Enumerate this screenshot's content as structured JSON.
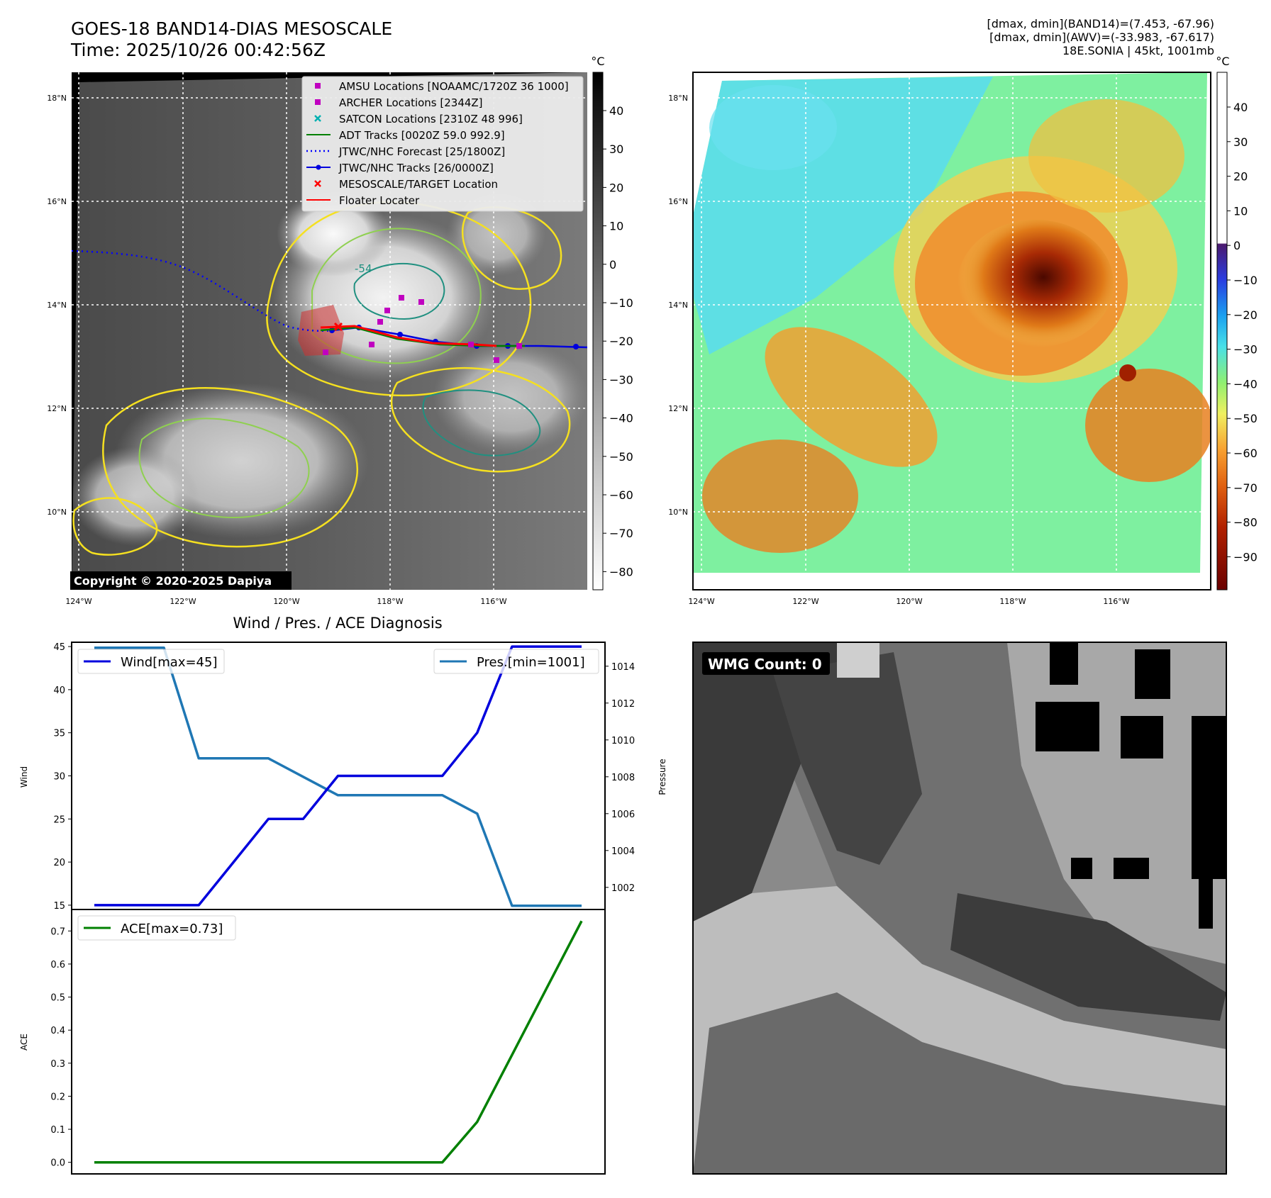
{
  "header": {
    "title": "GOES-18 BAND14-DIAS MESOSCALE",
    "time": "Time: 2025/10/26 00:42:56Z",
    "stats_band14": "[dmax, dmin](BAND14)=(7.453, -67.96)",
    "stats_awv": "[dmax, dmin](AWV)=(-33.983, -67.617)",
    "storm": "18E.SONIA | 45kt, 1001mb"
  },
  "colors": {
    "wind": "#0000dd",
    "pressure": "#1f77b4",
    "ace": "#008000",
    "amsu": "#c000c0",
    "satcon": "#00b0b0",
    "adt": "#008000",
    "forecast": "#0000ff",
    "target": "#ff0000"
  },
  "map_axes": {
    "lat_labels": [
      "18°N",
      "16°N",
      "14°N",
      "12°N",
      "10°N"
    ],
    "lon_labels": [
      "124°W",
      "122°W",
      "120°W",
      "118°W",
      "116°W"
    ]
  },
  "map_left": {
    "colorbar_unit": "°C",
    "colorbar_ticks": [
      "40",
      "30",
      "20",
      "10",
      "0",
      "−10",
      "−20",
      "−30",
      "−40",
      "−50",
      "−60",
      "−70",
      "−80"
    ],
    "copyright": "Copyright © 2020-2025 Dapiya",
    "contour_label": "-54",
    "legend": [
      {
        "label": "AMSU Locations [NOAAMC/1720Z 36 1000]",
        "icon": "magenta-square"
      },
      {
        "label": "ARCHER Locations [2344Z]",
        "icon": "magenta-square"
      },
      {
        "label": "SATCON Locations [2310Z 48 996]",
        "icon": "cyan-x"
      },
      {
        "label": "ADT Tracks [0020Z 59.0 992.9]",
        "icon": "green-line"
      },
      {
        "label": "JTWC/NHC Forecast [25/1800Z]",
        "icon": "blue-dotted-line"
      },
      {
        "label": "JTWC/NHC Tracks [26/0000Z]",
        "icon": "blue-line-dot"
      },
      {
        "label": "MESOSCALE/TARGET Location",
        "icon": "red-x"
      },
      {
        "label": "Floater Locater",
        "icon": "red-line"
      }
    ]
  },
  "map_right": {
    "colorbar_unit": "°C",
    "colorbar_ticks": [
      "40",
      "30",
      "20",
      "10",
      "0",
      "−10",
      "−20",
      "−30",
      "−40",
      "−50",
      "−60",
      "−70",
      "−80",
      "−90"
    ]
  },
  "wmg": {
    "label": "WMG Count: 0"
  },
  "chart_data": [
    {
      "type": "line",
      "title": "Wind / Pres. / ACE Diagnosis",
      "ylabel": "Wind",
      "ylabel_right": "Pressure",
      "x": [
        0,
        1,
        2,
        3,
        4,
        5,
        6,
        7,
        8,
        9,
        10,
        11,
        12,
        13,
        14
      ],
      "series": [
        {
          "name": "Wind[max=45]",
          "axis": "left",
          "values": [
            15,
            15,
            15,
            15,
            20,
            25,
            25,
            30,
            30,
            30,
            30,
            35,
            45,
            45,
            45
          ]
        },
        {
          "name": "Pres.[min=1001]",
          "axis": "right",
          "values": [
            1015,
            1015,
            1015,
            1009,
            1009,
            1009,
            1008,
            1007,
            1007,
            1007,
            1007,
            1006,
            1001,
            1001,
            1001
          ]
        }
      ],
      "ylim": [
        14.5,
        45.5
      ],
      "yticks": [
        15,
        20,
        25,
        30,
        35,
        40,
        45
      ],
      "ylim_right": [
        1000.8,
        1015.3
      ],
      "yticks_right": [
        1002,
        1004,
        1006,
        1008,
        1010,
        1012,
        1014
      ],
      "legend": "top-left / top-right"
    },
    {
      "type": "line",
      "ylabel": "ACE",
      "x": [
        0,
        1,
        2,
        3,
        4,
        5,
        6,
        7,
        8,
        9,
        10,
        11,
        12,
        13,
        14
      ],
      "series": [
        {
          "name": "ACE[max=0.73]",
          "values": [
            0,
            0,
            0,
            0,
            0,
            0,
            0,
            0,
            0,
            0,
            0,
            0.1225,
            0.325,
            0.5275,
            0.73
          ]
        }
      ],
      "ylim": [
        -0.035,
        0.765
      ],
      "yticks": [
        "0.0",
        "0.1",
        "0.2",
        "0.3",
        "0.4",
        "0.5",
        "0.6",
        "0.7"
      ],
      "legend": "top-left"
    }
  ]
}
